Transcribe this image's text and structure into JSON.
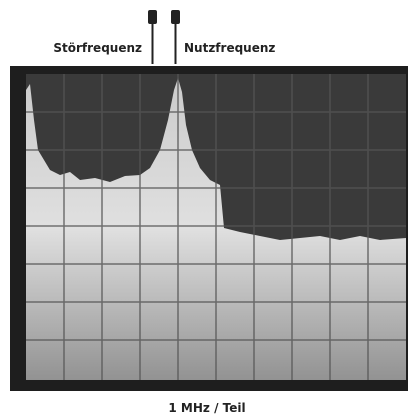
{
  "labels": {
    "interference": "Störfrequenz",
    "signal": "Nutzfrequenz"
  },
  "caption": "1 MHz / Teil"
}
